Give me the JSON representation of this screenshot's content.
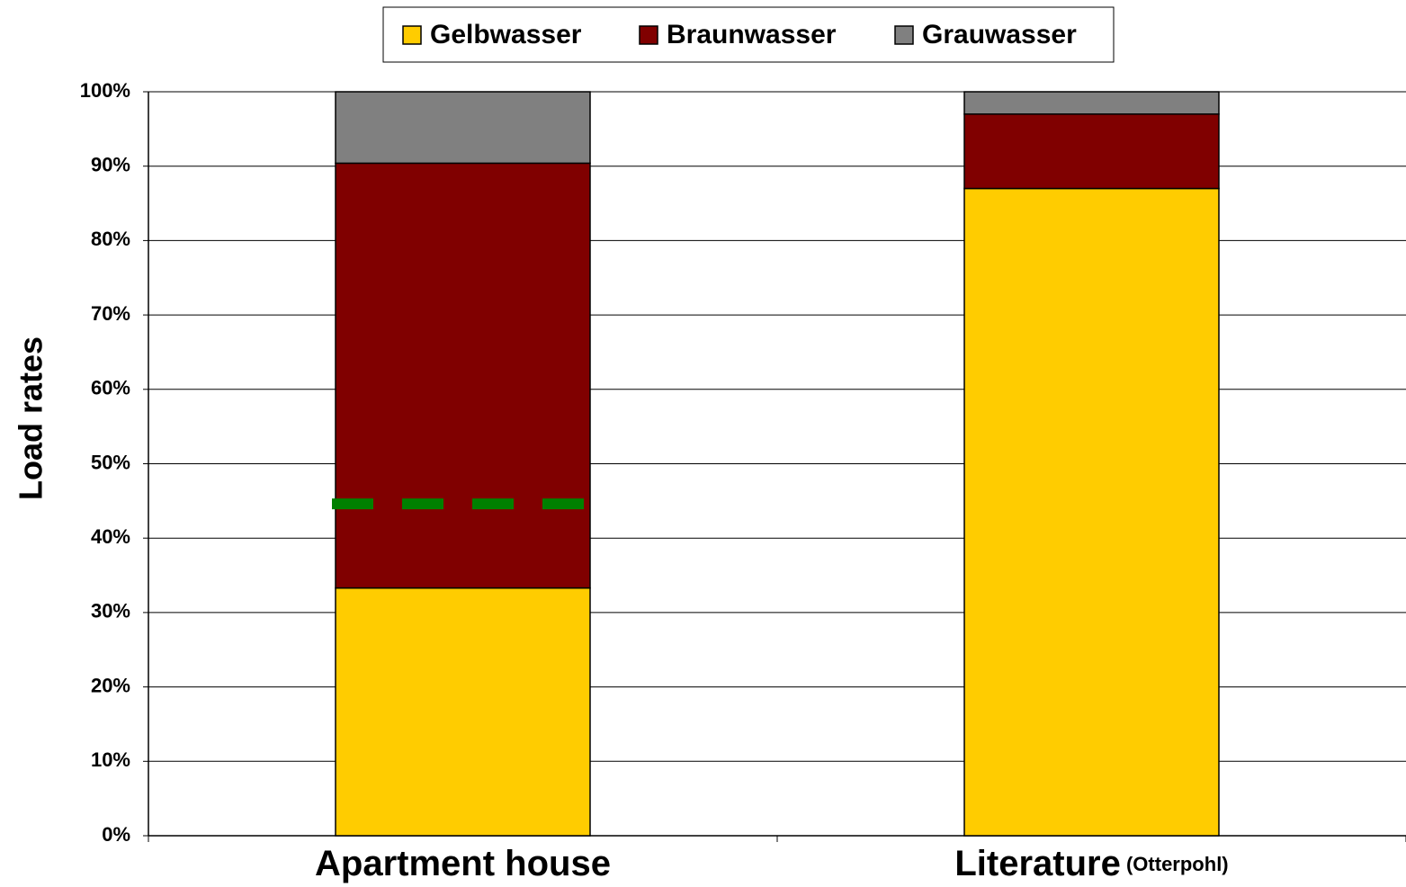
{
  "chart_data": {
    "type": "stacked_bar",
    "categories": [
      {
        "label": "Apartment house"
      },
      {
        "label": "Literature",
        "note": "(Otterpohl)"
      }
    ],
    "series": [
      {
        "name": "Gelbwasser",
        "color": "#ffcc00",
        "values": [
          33.3,
          87
        ]
      },
      {
        "name": "Braunwasser",
        "color": "#800000",
        "values": [
          57.1,
          10
        ]
      },
      {
        "name": "Grauwasser",
        "color": "#808080",
        "values": [
          9.6,
          3
        ]
      }
    ],
    "y_label": "Load rates",
    "ylim": [
      0,
      100
    ],
    "yticks": [
      {
        "value": 0,
        "label": "0%"
      },
      {
        "value": 10,
        "label": "10%"
      },
      {
        "value": 20,
        "label": "20%"
      },
      {
        "value": 30,
        "label": "30%"
      },
      {
        "value": 40,
        "label": "40%"
      },
      {
        "value": 50,
        "label": "50%"
      },
      {
        "value": 60,
        "label": "60%"
      },
      {
        "value": 70,
        "label": "70%"
      },
      {
        "value": 80,
        "label": "80%"
      },
      {
        "value": 90,
        "label": "90%"
      },
      {
        "value": 100,
        "label": "100%"
      }
    ],
    "grid": true,
    "legend": "top",
    "reference_line": {
      "value": 44.6,
      "color": "#008000",
      "category": 0
    }
  }
}
